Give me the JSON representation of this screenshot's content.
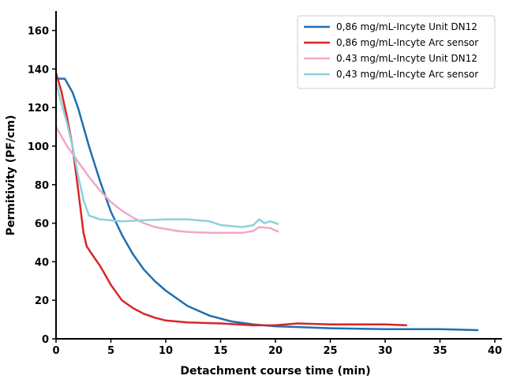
{
  "chart_data": {
    "type": "line",
    "title": "",
    "xlabel": "Detachment course time (min)",
    "ylabel": "Permitivity (PF/cm)",
    "xlim": [
      0,
      40
    ],
    "ylim": [
      0,
      170
    ],
    "xticks": [
      0,
      5,
      10,
      15,
      20,
      25,
      30,
      35,
      40
    ],
    "yticks": [
      0,
      20,
      40,
      60,
      80,
      100,
      120,
      140,
      160
    ],
    "grid": false,
    "legend_position": "top-right",
    "series": [
      {
        "name": "0,86 mg/mL-Incyte Unit DN12",
        "color": "#1f6fb2",
        "x": [
          0,
          0.8,
          1.5,
          2,
          3,
          4,
          5,
          6,
          7,
          8,
          9,
          10,
          12,
          14,
          16,
          18,
          20,
          25,
          30,
          35,
          38.5
        ],
        "y": [
          135,
          135,
          128,
          120,
          100,
          82,
          66,
          54,
          44,
          36,
          30,
          25,
          17,
          12,
          9,
          7.5,
          6.5,
          5.5,
          5,
          5,
          4.5
        ]
      },
      {
        "name": "0,86 mg/mL-Incyte Arc sensor",
        "color": "#d62728",
        "x": [
          0,
          0.5,
          1,
          1.5,
          2,
          2.5,
          2.8,
          3.5,
          4,
          5,
          6,
          7,
          8,
          9,
          10,
          12,
          15,
          18,
          20,
          22,
          25,
          28,
          30,
          32
        ],
        "y": [
          138,
          128,
          115,
          100,
          78,
          55,
          48,
          42,
          38,
          28,
          20,
          16,
          13,
          11,
          9.5,
          8.5,
          8,
          7,
          7,
          8,
          7.5,
          7.5,
          7.5,
          7
        ]
      },
      {
        "name": "0.43 mg/mL-Incyte Unit DN12",
        "color": "#f4a6c8",
        "x": [
          0,
          1,
          2,
          3,
          4,
          5,
          6,
          7,
          8,
          9,
          10,
          11,
          12,
          14,
          17,
          18,
          18.5,
          19.5,
          20.3
        ],
        "y": [
          110,
          100,
          92,
          84,
          77,
          71,
          66.5,
          63,
          60,
          58,
          57,
          56,
          55.5,
          55,
          55,
          56,
          58,
          57.5,
          55.5
        ]
      },
      {
        "name": "0,43 mg/mL-Incyte Arc sensor",
        "color": "#8fd0dc",
        "x": [
          0,
          0.5,
          1,
          1.5,
          2,
          2.5,
          3,
          4,
          6,
          8,
          10,
          12,
          14,
          15,
          17,
          18,
          18.5,
          19,
          19.5,
          20.3
        ],
        "y": [
          133,
          122,
          112,
          100,
          85,
          72,
          64,
          62,
          61,
          61.5,
          62,
          62,
          61,
          59,
          58,
          59,
          62,
          60,
          61,
          59.5
        ]
      }
    ]
  }
}
